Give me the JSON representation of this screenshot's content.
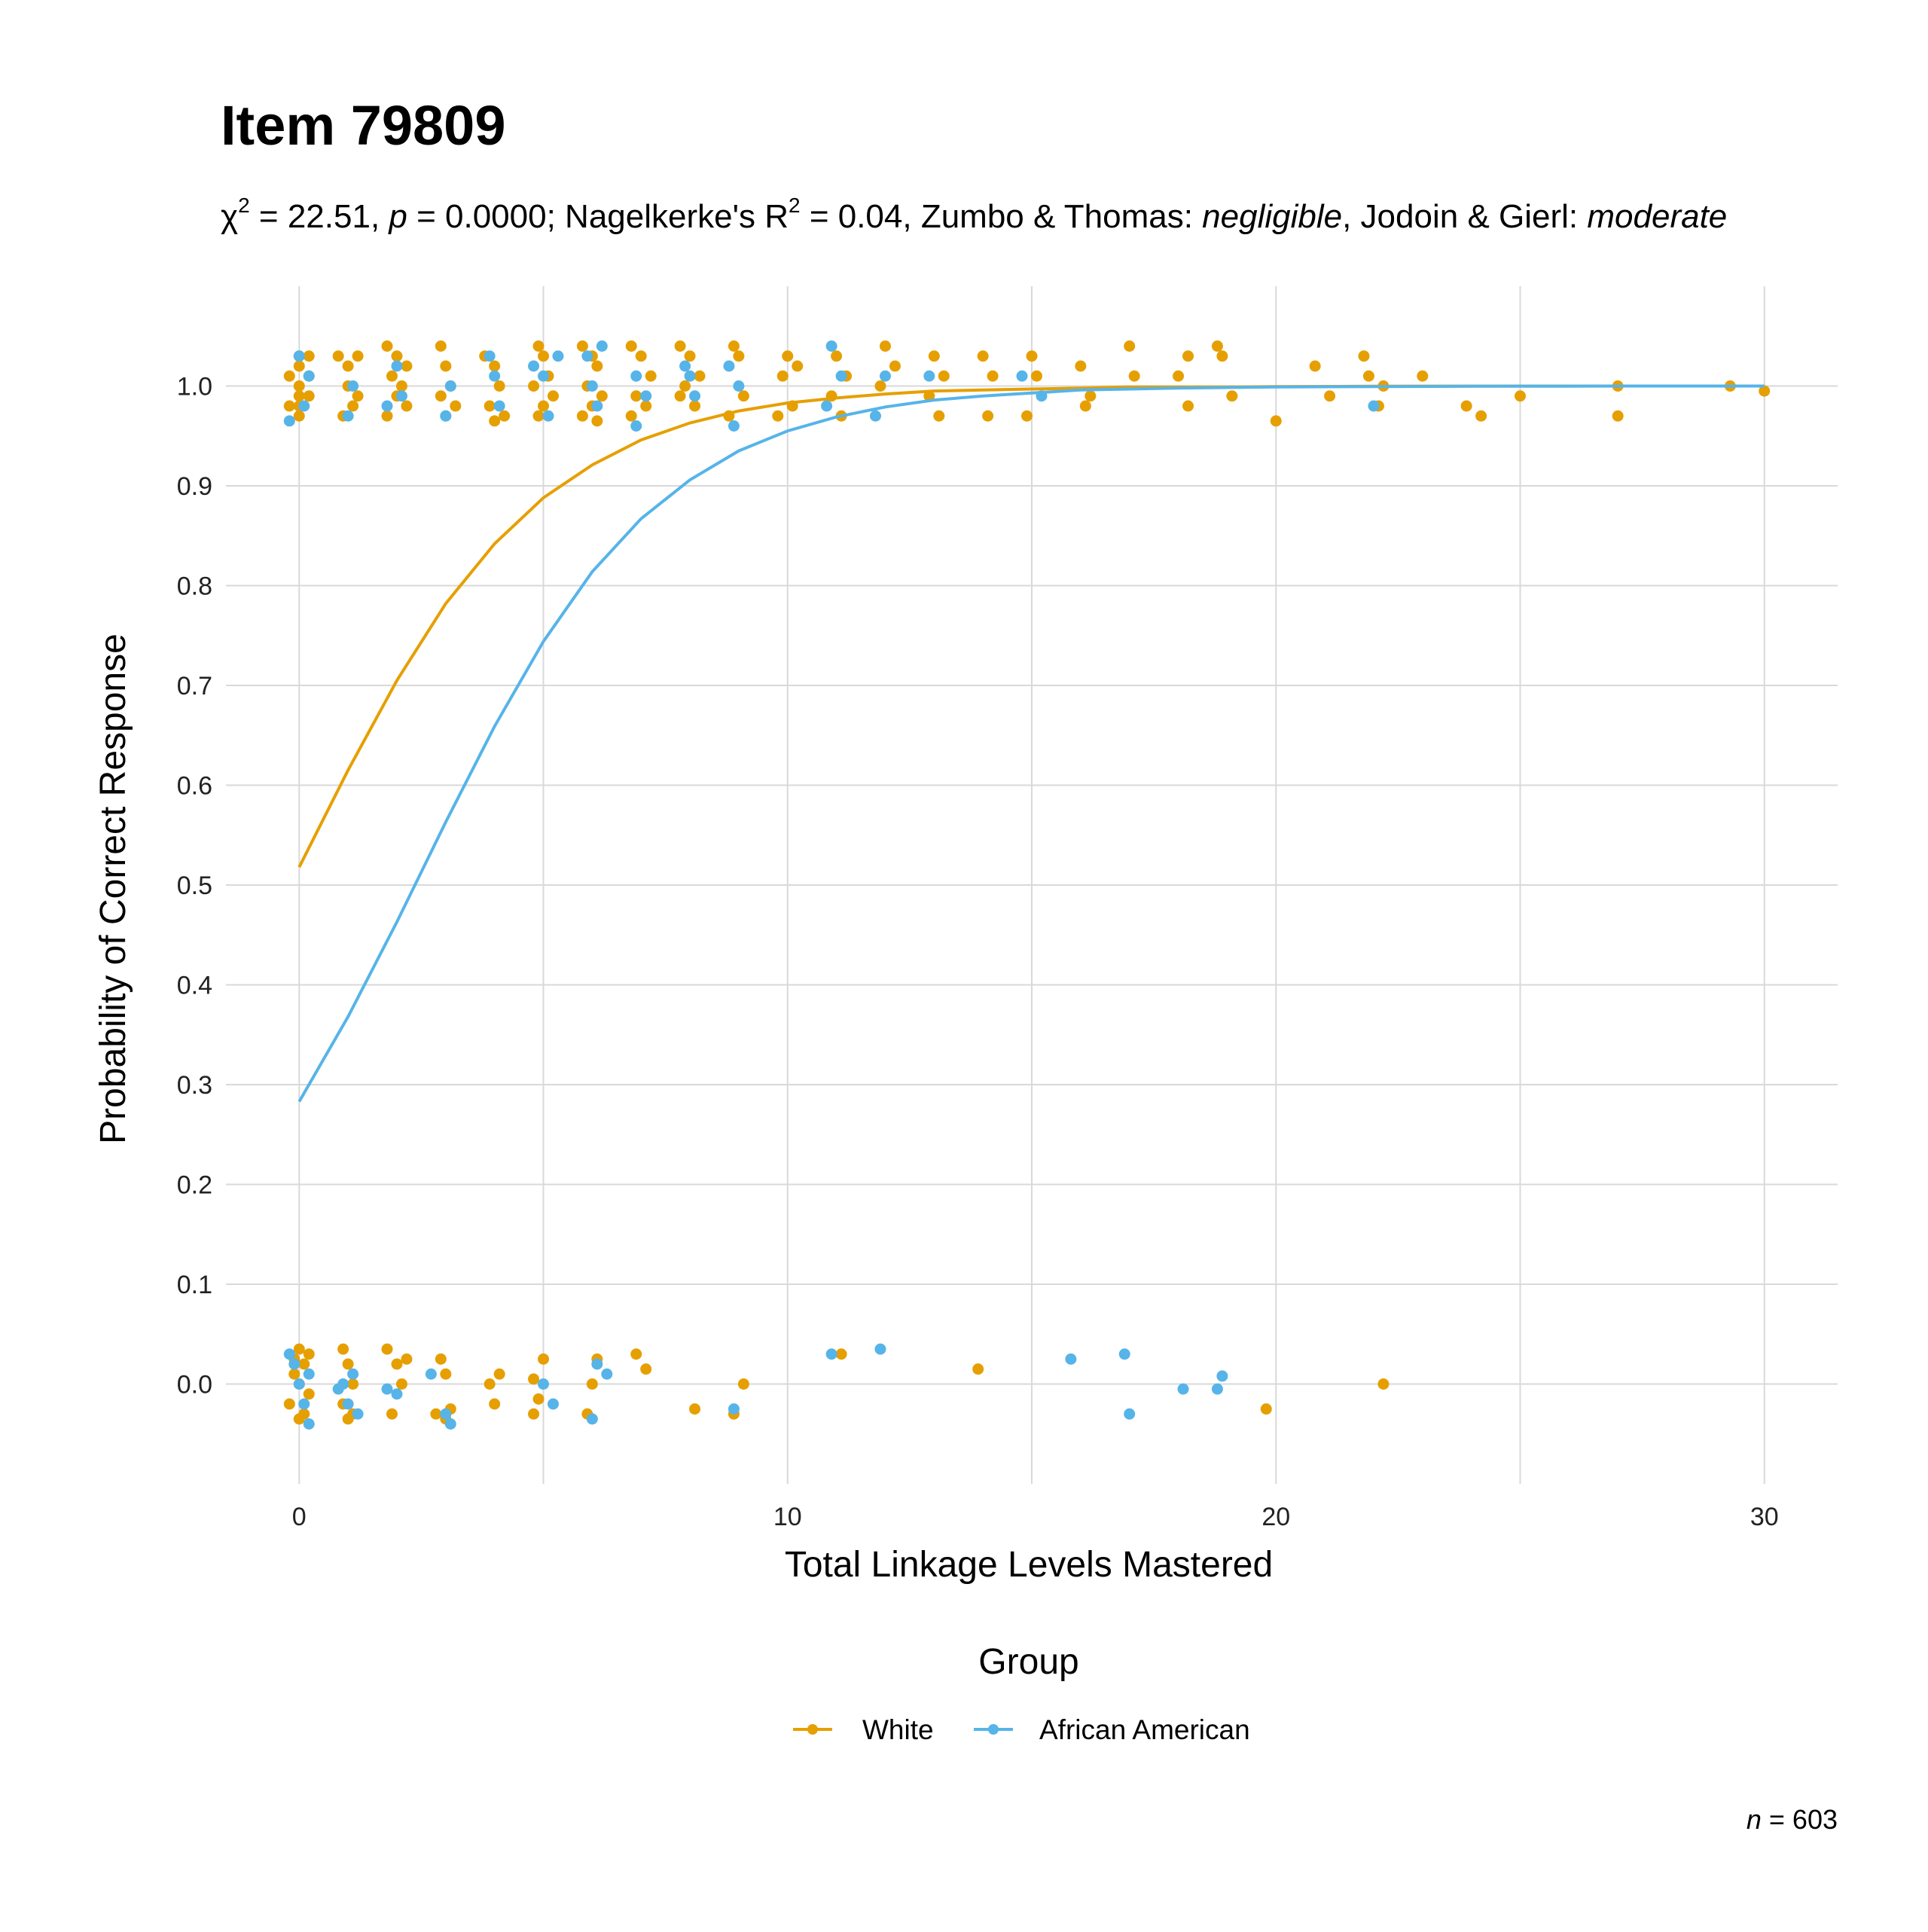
{
  "chart_data": {
    "type": "scatter",
    "title": "Item 79809",
    "subtitle": {
      "chi_symbol": "χ",
      "chi_sup": "2",
      "chi_value": " = 22.51, ",
      "p_label": "p",
      "p_value": " = 0.0000; Nagelkerke's R",
      "r_sup": "2",
      "r_value": " = 0.04, Zumbo & Thomas: ",
      "zumbo_effect": "negligible",
      "jodoin_text": ", Jodoin & Gierl: ",
      "jodoin_effect": "moderate"
    },
    "xlabel": "Total Linkage Levels Mastered",
    "ylabel": "Probability of Correct Response",
    "xlim": [
      -1.5,
      31.5
    ],
    "ylim": [
      -0.1,
      1.1
    ],
    "x_ticks": [
      0,
      10,
      20,
      30
    ],
    "x_tick_labels": [
      "0",
      "10",
      "20",
      "30"
    ],
    "y_ticks": [
      0.0,
      0.1,
      0.2,
      0.3,
      0.4,
      0.5,
      0.6,
      0.7,
      0.8,
      0.9,
      1.0
    ],
    "y_tick_labels": [
      "0.0",
      "0.1",
      "0.2",
      "0.3",
      "0.4",
      "0.5",
      "0.6",
      "0.7",
      "0.8",
      "0.9",
      "1.0"
    ],
    "grid": true,
    "legend": {
      "title": "Group",
      "position": "bottom"
    },
    "caption": {
      "n_label": "n",
      "n_value": " = 603"
    },
    "series": [
      {
        "name": "White",
        "color": "#E69F00",
        "curve": {
          "x": [
            0,
            1,
            2,
            3,
            4,
            5,
            6,
            7,
            8,
            9,
            10,
            11,
            12,
            13,
            14,
            15,
            16,
            17,
            18,
            19,
            20,
            22,
            24,
            26,
            28,
            30
          ],
          "y": [
            0.518,
            0.615,
            0.705,
            0.782,
            0.842,
            0.888,
            0.921,
            0.946,
            0.963,
            0.975,
            0.983,
            0.988,
            0.992,
            0.995,
            0.996,
            0.997,
            0.998,
            0.999,
            0.999,
            0.999,
            0.9995,
            0.9998,
            0.9999,
            0.9999,
            1.0,
            1.0
          ]
        },
        "points": [
          [
            0,
            1.03
          ],
          [
            0,
            1.02
          ],
          [
            0,
            1.0
          ],
          [
            0,
            0.99
          ],
          [
            0,
            0.98
          ],
          [
            0,
            0.97
          ],
          [
            0.2,
            1.03
          ],
          [
            0.2,
            1.01
          ],
          [
            0.2,
            0.99
          ],
          [
            -0.2,
            1.01
          ],
          [
            -0.2,
            0.98
          ],
          [
            0.8,
            1.03
          ],
          [
            1,
            1.02
          ],
          [
            1.2,
            1.03
          ],
          [
            1,
            1.0
          ],
          [
            1.2,
            0.99
          ],
          [
            0.9,
            0.97
          ],
          [
            1.1,
            0.98
          ],
          [
            1.8,
            1.04
          ],
          [
            2,
            1.03
          ],
          [
            1.9,
            1.01
          ],
          [
            2.2,
            1.02
          ],
          [
            2.1,
            1.0
          ],
          [
            2,
            0.99
          ],
          [
            1.8,
            0.97
          ],
          [
            2.2,
            0.98
          ],
          [
            2.9,
            1.04
          ],
          [
            3,
            1.02
          ],
          [
            3.1,
            1.0
          ],
          [
            2.9,
            0.99
          ],
          [
            3.2,
            0.98
          ],
          [
            3,
            0.97
          ],
          [
            3.8,
            1.03
          ],
          [
            4,
            1.02
          ],
          [
            4.1,
            1.0
          ],
          [
            3.9,
            0.98
          ],
          [
            4.2,
            0.97
          ],
          [
            4,
            0.965
          ],
          [
            4.9,
            1.04
          ],
          [
            5,
            1.03
          ],
          [
            5.1,
            1.01
          ],
          [
            4.8,
            1.0
          ],
          [
            5.2,
            0.99
          ],
          [
            5,
            0.98
          ],
          [
            4.9,
            0.97
          ],
          [
            5.8,
            1.04
          ],
          [
            6,
            1.03
          ],
          [
            6.1,
            1.02
          ],
          [
            5.9,
            1.0
          ],
          [
            6.2,
            0.99
          ],
          [
            6,
            0.98
          ],
          [
            5.8,
            0.97
          ],
          [
            6.1,
            0.965
          ],
          [
            6.8,
            1.04
          ],
          [
            7,
            1.03
          ],
          [
            7.2,
            1.01
          ],
          [
            6.9,
            0.99
          ],
          [
            7.1,
            0.98
          ],
          [
            6.8,
            0.97
          ],
          [
            7.8,
            1.04
          ],
          [
            8,
            1.03
          ],
          [
            8.2,
            1.01
          ],
          [
            7.9,
            1.0
          ],
          [
            8.1,
            0.98
          ],
          [
            7.8,
            0.99
          ],
          [
            8.9,
            1.04
          ],
          [
            9,
            1.03
          ],
          [
            9.1,
            0.99
          ],
          [
            8.8,
            0.97
          ],
          [
            10,
            1.03
          ],
          [
            10.2,
            1.02
          ],
          [
            9.9,
            1.01
          ],
          [
            10.1,
            0.98
          ],
          [
            9.8,
            0.97
          ],
          [
            11,
            1.03
          ],
          [
            11.2,
            1.01
          ],
          [
            10.9,
            0.99
          ],
          [
            11.1,
            0.97
          ],
          [
            12,
            1.04
          ],
          [
            12.2,
            1.02
          ],
          [
            11.9,
            1.0
          ],
          [
            13,
            1.03
          ],
          [
            13.2,
            1.01
          ],
          [
            12.9,
            0.99
          ],
          [
            13.1,
            0.97
          ],
          [
            14,
            1.03
          ],
          [
            14.2,
            1.01
          ],
          [
            14.1,
            0.97
          ],
          [
            15,
            1.03
          ],
          [
            15.1,
            1.01
          ],
          [
            14.9,
            0.97
          ],
          [
            16,
            1.02
          ],
          [
            16.2,
            0.99
          ],
          [
            16.1,
            0.98
          ],
          [
            17,
            1.04
          ],
          [
            17.1,
            1.01
          ],
          [
            18,
            1.01
          ],
          [
            18.2,
            1.03
          ],
          [
            18.2,
            0.98
          ],
          [
            18.8,
            1.04
          ],
          [
            18.9,
            1.03
          ],
          [
            19.1,
            0.99
          ],
          [
            20,
            0.965
          ],
          [
            20.8,
            1.02
          ],
          [
            21.1,
            0.99
          ],
          [
            21.8,
            1.03
          ],
          [
            21.9,
            1.01
          ],
          [
            22.1,
            0.98
          ],
          [
            22.2,
            1.0
          ],
          [
            23,
            1.01
          ],
          [
            23.9,
            0.98
          ],
          [
            24.2,
            0.97
          ],
          [
            25,
            0.99
          ],
          [
            27,
            1.0
          ],
          [
            27,
            0.97
          ],
          [
            29.3,
            1.0
          ],
          [
            30,
            0.995
          ],
          [
            0,
            0.035
          ],
          [
            0.1,
            0.02
          ],
          [
            -0.1,
            0.01
          ],
          [
            0,
            0.0
          ],
          [
            0.2,
            -0.01
          ],
          [
            -0.2,
            -0.02
          ],
          [
            0.1,
            -0.03
          ],
          [
            0,
            -0.035
          ],
          [
            0.2,
            0.03
          ],
          [
            -0.1,
            0.025
          ],
          [
            0.9,
            0.035
          ],
          [
            1,
            0.02
          ],
          [
            1.1,
            0.0
          ],
          [
            0.9,
            -0.02
          ],
          [
            1.1,
            -0.03
          ],
          [
            1,
            -0.035
          ],
          [
            1.8,
            0.035
          ],
          [
            2,
            0.02
          ],
          [
            2.1,
            0.0
          ],
          [
            1.9,
            -0.03
          ],
          [
            2.2,
            0.025
          ],
          [
            2.9,
            0.025
          ],
          [
            3,
            0.01
          ],
          [
            3.1,
            -0.025
          ],
          [
            3,
            -0.035
          ],
          [
            2.8,
            -0.03
          ],
          [
            3.9,
            0.0
          ],
          [
            4,
            -0.02
          ],
          [
            4.1,
            0.01
          ],
          [
            4.8,
            0.005
          ],
          [
            4.9,
            -0.015
          ],
          [
            5,
            0.025
          ],
          [
            4.8,
            -0.03
          ],
          [
            5.9,
            -0.03
          ],
          [
            6,
            0.0
          ],
          [
            6.1,
            0.025
          ],
          [
            6.9,
            0.03
          ],
          [
            7.1,
            0.015
          ],
          [
            8.1,
            -0.025
          ],
          [
            8.9,
            -0.03
          ],
          [
            9.1,
            0.0
          ],
          [
            11.1,
            0.03
          ],
          [
            13.9,
            0.015
          ],
          [
            19.8,
            -0.025
          ],
          [
            22.2,
            0.0
          ]
        ]
      },
      {
        "name": "African American",
        "color": "#56B4E9",
        "curve": {
          "x": [
            0,
            1,
            2,
            3,
            4,
            5,
            6,
            7,
            8,
            9,
            10,
            11,
            12,
            13,
            14,
            15,
            16,
            17,
            18,
            19,
            20,
            22,
            24,
            26,
            28,
            30
          ],
          "y": [
            0.283,
            0.368,
            0.463,
            0.563,
            0.659,
            0.744,
            0.814,
            0.867,
            0.906,
            0.935,
            0.955,
            0.969,
            0.979,
            0.986,
            0.99,
            0.993,
            0.996,
            0.997,
            0.998,
            0.9985,
            0.999,
            0.9995,
            0.9998,
            0.9999,
            1.0,
            1.0
          ]
        },
        "points": [
          [
            -0.2,
            0.965
          ],
          [
            0,
            1.03
          ],
          [
            0.2,
            1.01
          ],
          [
            0.1,
            0.98
          ],
          [
            1,
            0.97
          ],
          [
            1.1,
            1.0
          ],
          [
            2,
            1.02
          ],
          [
            1.8,
            0.98
          ],
          [
            2.1,
            0.99
          ],
          [
            3,
            0.97
          ],
          [
            3.1,
            1.0
          ],
          [
            3.9,
            1.03
          ],
          [
            4,
            1.01
          ],
          [
            4.1,
            0.98
          ],
          [
            4.8,
            1.02
          ],
          [
            5,
            1.01
          ],
          [
            5.1,
            0.97
          ],
          [
            5.3,
            1.03
          ],
          [
            5.9,
            1.03
          ],
          [
            6,
            1.0
          ],
          [
            6.1,
            0.98
          ],
          [
            6.2,
            1.04
          ],
          [
            6.9,
            1.01
          ],
          [
            7.1,
            0.99
          ],
          [
            6.9,
            0.96
          ],
          [
            7.9,
            1.02
          ],
          [
            8,
            1.01
          ],
          [
            8.1,
            0.99
          ],
          [
            8.8,
            1.02
          ],
          [
            9,
            1.0
          ],
          [
            8.9,
            0.96
          ],
          [
            10.9,
            1.04
          ],
          [
            11.1,
            1.01
          ],
          [
            10.8,
            0.98
          ],
          [
            11.8,
            0.97
          ],
          [
            12,
            1.01
          ],
          [
            12.9,
            1.01
          ],
          [
            14.8,
            1.01
          ],
          [
            15.2,
            0.99
          ],
          [
            22,
            0.98
          ],
          [
            -0.2,
            0.03
          ],
          [
            0,
            0.0
          ],
          [
            0.1,
            -0.02
          ],
          [
            0.2,
            -0.04
          ],
          [
            -0.1,
            0.02
          ],
          [
            0.2,
            0.01
          ],
          [
            0.9,
            0.0
          ],
          [
            1,
            -0.02
          ],
          [
            1.2,
            -0.03
          ],
          [
            1.1,
            0.01
          ],
          [
            0.8,
            -0.005
          ],
          [
            1.8,
            -0.005
          ],
          [
            2,
            -0.01
          ],
          [
            2.7,
            0.01
          ],
          [
            3,
            -0.03
          ],
          [
            3.1,
            -0.04
          ],
          [
            5,
            0.0
          ],
          [
            5.2,
            -0.02
          ],
          [
            6,
            -0.035
          ],
          [
            6.1,
            0.02
          ],
          [
            6.3,
            0.01
          ],
          [
            8.9,
            -0.025
          ],
          [
            10.9,
            0.03
          ],
          [
            11.9,
            0.035
          ],
          [
            15.8,
            0.025
          ],
          [
            16.9,
            0.03
          ],
          [
            17,
            -0.03
          ],
          [
            18.1,
            -0.005
          ],
          [
            18.8,
            -0.005
          ],
          [
            18.9,
            0.008
          ]
        ]
      }
    ]
  }
}
